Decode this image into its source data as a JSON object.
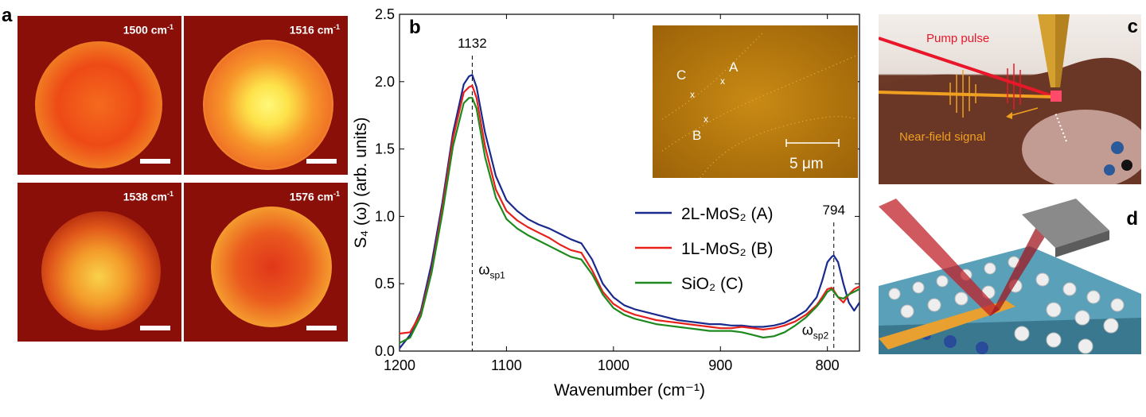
{
  "panel_a": {
    "label": "a",
    "tiles": [
      {
        "freq": "1500",
        "unit": "cm",
        "exp": "-1"
      },
      {
        "freq": "1516",
        "unit": "cm",
        "exp": "-1"
      },
      {
        "freq": "1538",
        "unit": "cm",
        "exp": "-1"
      },
      {
        "freq": "1576",
        "unit": "cm",
        "exp": "-1"
      }
    ]
  },
  "panel_b": {
    "label": "b",
    "inset": {
      "points": [
        "A",
        "B",
        "C"
      ],
      "scalebar": "5 μm"
    }
  },
  "panel_c": {
    "label": "c",
    "pump": "Pump pulse",
    "signal": "Near-field signal"
  },
  "panel_d": {
    "label": "d"
  },
  "chart_data": {
    "type": "line",
    "xlabel": "Wavenumber (cm⁻¹)",
    "ylabel": "S₄ (ω) (arb. units)",
    "xlim": [
      1200,
      770
    ],
    "ylim": [
      0,
      2.5
    ],
    "x_ticks": [
      1200,
      1100,
      1000,
      900,
      800
    ],
    "y_ticks": [
      0.0,
      0.5,
      1.0,
      1.5,
      2.0,
      2.5
    ],
    "annotations": [
      {
        "text": "1132",
        "x": 1132
      },
      {
        "text": "794",
        "x": 794
      },
      {
        "text": "ω",
        "sub": "sp1"
      },
      {
        "text": "ω",
        "sub": "sp2"
      }
    ],
    "legend_position": "lower-right",
    "x": [
      1200,
      1190,
      1180,
      1170,
      1160,
      1150,
      1140,
      1135,
      1132,
      1128,
      1120,
      1110,
      1100,
      1090,
      1080,
      1070,
      1060,
      1050,
      1040,
      1030,
      1020,
      1010,
      1000,
      990,
      980,
      970,
      960,
      950,
      940,
      930,
      920,
      910,
      900,
      890,
      880,
      870,
      860,
      850,
      840,
      830,
      820,
      810,
      805,
      800,
      796,
      794,
      790,
      785,
      780,
      775,
      770
    ],
    "series": [
      {
        "name": "2L-MoS₂ (A)",
        "color": "#1a2a8c",
        "values": [
          0.02,
          0.12,
          0.3,
          0.65,
          1.1,
          1.62,
          1.98,
          2.04,
          2.05,
          1.96,
          1.62,
          1.3,
          1.12,
          1.04,
          0.98,
          0.94,
          0.91,
          0.87,
          0.83,
          0.8,
          0.68,
          0.5,
          0.4,
          0.34,
          0.31,
          0.29,
          0.27,
          0.25,
          0.23,
          0.22,
          0.21,
          0.2,
          0.2,
          0.19,
          0.19,
          0.18,
          0.18,
          0.19,
          0.21,
          0.25,
          0.3,
          0.4,
          0.52,
          0.66,
          0.7,
          0.71,
          0.66,
          0.5,
          0.36,
          0.3,
          0.36
        ]
      },
      {
        "name": "1L-MoS₂ (B)",
        "color": "#e8201c",
        "values": [
          0.13,
          0.14,
          0.28,
          0.6,
          1.06,
          1.58,
          1.92,
          1.96,
          1.97,
          1.88,
          1.52,
          1.2,
          1.04,
          0.97,
          0.92,
          0.88,
          0.84,
          0.79,
          0.75,
          0.73,
          0.6,
          0.44,
          0.35,
          0.3,
          0.27,
          0.25,
          0.23,
          0.22,
          0.21,
          0.2,
          0.19,
          0.18,
          0.17,
          0.17,
          0.18,
          0.17,
          0.16,
          0.17,
          0.19,
          0.22,
          0.27,
          0.34,
          0.4,
          0.46,
          0.47,
          0.45,
          0.4,
          0.36,
          0.42,
          0.46,
          0.48
        ]
      },
      {
        "name": "SiO₂ (C)",
        "color": "#1e8a1e",
        "values": [
          0.06,
          0.1,
          0.26,
          0.58,
          1.02,
          1.52,
          1.84,
          1.88,
          1.88,
          1.8,
          1.44,
          1.14,
          0.98,
          0.91,
          0.86,
          0.82,
          0.78,
          0.74,
          0.7,
          0.68,
          0.57,
          0.42,
          0.32,
          0.27,
          0.24,
          0.22,
          0.2,
          0.19,
          0.18,
          0.17,
          0.16,
          0.15,
          0.15,
          0.15,
          0.14,
          0.12,
          0.1,
          0.11,
          0.14,
          0.19,
          0.25,
          0.33,
          0.38,
          0.44,
          0.46,
          0.44,
          0.4,
          0.39,
          0.42,
          0.44,
          0.46
        ]
      }
    ]
  }
}
